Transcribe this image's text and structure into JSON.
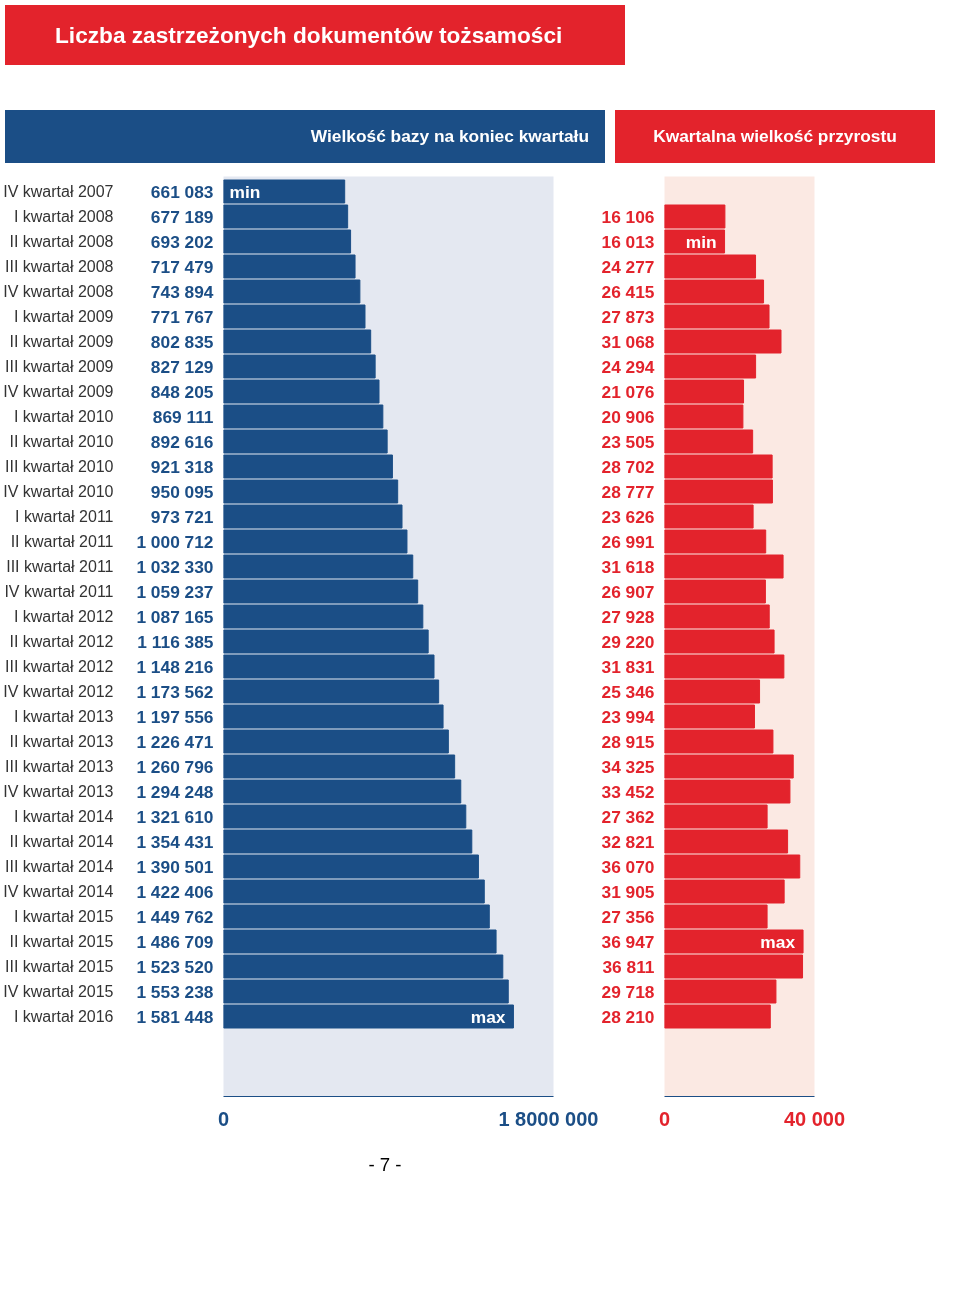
{
  "chart_data": [
    {
      "type": "bar",
      "orientation": "horizontal",
      "title": "Liczba zastrzeżonych dokumentów tożsamości",
      "subtitle": "Wielkość bazy na koniec kwartału",
      "categories": [
        "IV kwartał 2007",
        "I kwartał 2008",
        "II kwartał 2008",
        "III kwartał 2008",
        "IV kwartał 2008",
        "I kwartał 2009",
        "II kwartał 2009",
        "III kwartał 2009",
        "IV kwartał 2009",
        "I kwartał 2010",
        "II kwartał 2010",
        "III kwartał 2010",
        "IV kwartał 2010",
        "I kwartał 2011",
        "II kwartał 2011",
        "III kwartał 2011",
        "IV kwartał 2011",
        "I kwartał 2012",
        "II kwartał 2012",
        "III kwartał 2012",
        "IV kwartał 2012",
        "I kwartał 2013",
        "II kwartał 2013",
        "III kwartał 2013",
        "IV kwartał 2013",
        "I kwartał 2014",
        "II kwartał 2014",
        "III kwartał 2014",
        "IV kwartał 2014",
        "I kwartał 2015",
        "II kwartał 2015",
        "III kwartał 2015",
        "IV kwartał 2015",
        "I kwartał 2016"
      ],
      "values": [
        661083,
        677189,
        693202,
        717479,
        743894,
        771767,
        802835,
        827129,
        848205,
        869111,
        892616,
        921318,
        950095,
        973721,
        1000712,
        1032330,
        1059237,
        1087165,
        1116385,
        1148216,
        1173562,
        1197556,
        1226471,
        1260796,
        1294248,
        1321610,
        1354431,
        1390501,
        1422406,
        1449762,
        1486709,
        1523520,
        1553238,
        1581448
      ],
      "value_labels": [
        "661 083",
        "677 189",
        "693 202",
        "717 479",
        "743 894",
        "771 767",
        "802 835",
        "827 129",
        "848 205",
        "869 111",
        "892 616",
        "921 318",
        "950 095",
        "973 721",
        "1 000 712",
        "1 032 330",
        "1 059 237",
        "1 087 165",
        "1 116 385",
        "1 148 216",
        "1 173 562",
        "1 197 556",
        "1 226 471",
        "1 260 796",
        "1 294 248",
        "1 321 610",
        "1 354 431",
        "1 390 501",
        "1 422 406",
        "1 449 762",
        "1 486 709",
        "1 523 520",
        "1 553 238",
        "1 581 448"
      ],
      "color": "#1b4e86",
      "xlim": [
        0,
        1800000
      ],
      "annotations": [
        {
          "text": "min",
          "x": 0,
          "y": "IV kwartał 2007"
        },
        {
          "text": "max",
          "x": 1581448,
          "y": "I kwartał 2016"
        },
        "0",
        "1 8000 000",
        "- 7 -"
      ]
    },
    {
      "type": "bar",
      "orientation": "horizontal",
      "title": "Kwartalna wielkość przyrostu",
      "tick_labels": "x",
      "categories": [
        "IV kwartał 2007",
        "I kwartał 2008",
        "II kwartał 2008",
        "III kwartał 2008",
        "IV kwartał 2008",
        "I kwartał 2009",
        "II kwartał 2009",
        "III kwartał 2009",
        "IV kwartał 2009",
        "I kwartał 2010",
        "II kwartał 2010",
        "III kwartał 2010",
        "IV kwartał 2010",
        "I kwartał 2011",
        "II kwartał 2011",
        "III kwartał 2011",
        "IV kwartał 2011",
        "I kwartał 2012",
        "II kwartał 2012",
        "III kwartał 2012",
        "IV kwartał 2012",
        "I kwartał 2013",
        "II kwartał 2013",
        "III kwartał 2013",
        "IV kwartał 2013",
        "I kwartał 2014",
        "II kwartał 2014",
        "III kwartał 2014",
        "IV kwartał 2014",
        "I kwartał 2015",
        "II kwartał 2015",
        "III kwartał 2015",
        "IV kwartał 2015",
        "I kwartał 2016"
      ],
      "values": [
        null,
        16106,
        16013,
        24277,
        26415,
        27873,
        31068,
        24294,
        21076,
        20906,
        23505,
        28702,
        28777,
        23626,
        26991,
        31618,
        26907,
        27928,
        29220,
        31831,
        25346,
        23994,
        28915,
        34325,
        33452,
        27362,
        32821,
        36070,
        31905,
        27356,
        36947,
        36811,
        29718,
        28210
      ],
      "value_labels": [
        null,
        "16 106",
        "16 013",
        "24 277",
        "26 415",
        "27 873",
        "31 068",
        "24 294",
        "21 076",
        "20 906",
        "23 505",
        "28 702",
        "28 777",
        "23 626",
        "26 991",
        "31 618",
        "26 907",
        "27 928",
        "29 220",
        "31 831",
        "25 346",
        "23 994",
        "28 915",
        "34 325",
        "33 452",
        "27 362",
        "32 821",
        "36 070",
        "31 905",
        "27 356",
        "36 947",
        "36 811",
        "29 718",
        "28 210"
      ],
      "color": "#e3232c",
      "xlim": [
        0,
        40000
      ],
      "annotations": [
        {
          "text": "min",
          "x": 16013,
          "y": "II kwartał 2008"
        },
        {
          "text": "max",
          "x": 36947,
          "y": "II kwartał 2015"
        },
        "0",
        "40 000"
      ]
    }
  ]
}
